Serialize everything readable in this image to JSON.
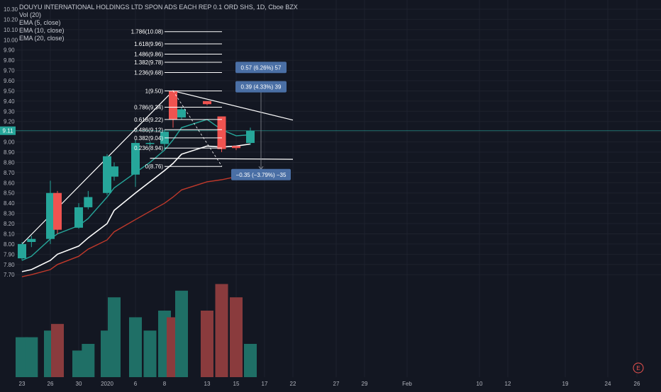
{
  "legend": {
    "title": "DOUYU INTERNATIONAL HOLDINGS LTD SPON ADS EACH REP 0.1 ORD SHS, 1D, Cboe BZX",
    "vol": "Vol (20)",
    "ema5": "EMA (5, close)",
    "ema10": "EMA (10, close)",
    "ema20": "EMA (20, close)"
  },
  "colors": {
    "background": "#131722",
    "grid": "#1e222d",
    "up": "#26a69a",
    "down": "#ef5350",
    "up_volume": "#1f6f66",
    "down_volume": "#8a3b3d",
    "ema20": "#c0392b",
    "price_line": "#26a69a"
  },
  "chart_data": {
    "type": "candlestick",
    "y_ticks": [
      "10.30",
      "10.20",
      "10.10",
      "10.00",
      "9.90",
      "9.80",
      "9.70",
      "9.60",
      "9.50",
      "9.40",
      "9.30",
      "9.20",
      "9.10",
      "9.00",
      "8.90",
      "8.80",
      "8.70",
      "8.60",
      "8.50",
      "8.40",
      "8.30",
      "8.20",
      "8.10",
      "8.00",
      "7.90",
      "7.80",
      "7.70"
    ],
    "x_ticks": [
      {
        "label": "23",
        "date": "2019-12-23"
      },
      {
        "label": "26",
        "date": "2019-12-26"
      },
      {
        "label": "30",
        "date": "2019-12-30"
      },
      {
        "label": "2020",
        "date": "2020-01-02"
      },
      {
        "label": "6",
        "date": "2020-01-06"
      },
      {
        "label": "8",
        "date": "2020-01-08"
      },
      {
        "label": "13",
        "date": "2020-01-13"
      },
      {
        "label": "15",
        "date": "2020-01-15"
      },
      {
        "label": "17",
        "date": "2020-01-17"
      },
      {
        "label": "22",
        "date": "2020-01-22"
      },
      {
        "label": "27",
        "date": "2020-01-27"
      },
      {
        "label": "29",
        "date": "2020-01-29"
      },
      {
        "label": "Feb",
        "date": "2020-02-03"
      },
      {
        "label": "10",
        "date": "2020-02-10"
      },
      {
        "label": "12",
        "date": "2020-02-12"
      },
      {
        "label": "19",
        "date": "2020-02-19"
      },
      {
        "label": "24",
        "date": "2020-02-24"
      },
      {
        "label": "26",
        "date": "2020-02-26"
      }
    ],
    "candles": [
      {
        "date": "2019-12-23",
        "o": 7.86,
        "h": 8.02,
        "l": 7.84,
        "c": 8.0
      },
      {
        "date": "2019-12-24",
        "o": 8.02,
        "h": 8.08,
        "l": 7.97,
        "c": 8.05
      },
      {
        "date": "2019-12-26",
        "o": 8.05,
        "h": 8.62,
        "l": 8.0,
        "c": 8.5
      },
      {
        "date": "2019-12-27",
        "o": 8.5,
        "h": 8.52,
        "l": 8.1,
        "c": 8.14
      },
      {
        "date": "2019-12-30",
        "o": 8.16,
        "h": 8.4,
        "l": 8.15,
        "c": 8.36
      },
      {
        "date": "2019-12-31",
        "o": 8.36,
        "h": 8.52,
        "l": 8.34,
        "c": 8.46
      },
      {
        "date": "2020-01-02",
        "o": 8.5,
        "h": 8.88,
        "l": 8.48,
        "c": 8.86
      },
      {
        "date": "2020-01-03",
        "o": 8.66,
        "h": 8.8,
        "l": 8.62,
        "c": 8.76
      },
      {
        "date": "2020-01-06",
        "o": 8.68,
        "h": 9.02,
        "l": 8.56,
        "c": 8.99
      },
      {
        "date": "2020-01-07",
        "o": 8.98,
        "h": 9.0,
        "l": 8.96,
        "c": 8.99
      },
      {
        "date": "2020-01-08",
        "o": 8.98,
        "h": 9.12,
        "l": 8.92,
        "c": 9.1
      },
      {
        "date": "2020-01-09",
        "o": 9.5,
        "h": 9.51,
        "l": 9.14,
        "c": 9.22
      },
      {
        "date": "2020-01-10",
        "o": 9.24,
        "h": 9.34,
        "l": 9.22,
        "c": 9.32
      },
      {
        "date": "2020-01-13",
        "o": 9.4,
        "h": 9.4,
        "l": 9.36,
        "c": 9.37
      },
      {
        "date": "2020-01-14",
        "o": 9.25,
        "h": 9.25,
        "l": 8.9,
        "c": 8.93
      },
      {
        "date": "2020-01-15",
        "o": 8.96,
        "h": 8.96,
        "l": 8.92,
        "c": 8.94
      },
      {
        "date": "2020-01-16",
        "o": 8.99,
        "h": 9.14,
        "l": 8.97,
        "c": 9.11
      }
    ],
    "volume_index": [
      6,
      6,
      7,
      8,
      4,
      5,
      7,
      12,
      9,
      7,
      10,
      9,
      13,
      10,
      14,
      12,
      5
    ],
    "ema5": [
      {
        "date": "2019-12-23",
        "v": 7.84
      },
      {
        "date": "2019-12-24",
        "v": 7.88
      },
      {
        "date": "2019-12-26",
        "v": 8.05
      },
      {
        "date": "2019-12-27",
        "v": 8.1
      },
      {
        "date": "2019-12-30",
        "v": 8.18
      },
      {
        "date": "2019-12-31",
        "v": 8.25
      },
      {
        "date": "2020-01-02",
        "v": 8.46
      },
      {
        "date": "2020-01-03",
        "v": 8.55
      },
      {
        "date": "2020-01-06",
        "v": 8.7
      },
      {
        "date": "2020-01-07",
        "v": 8.8
      },
      {
        "date": "2020-01-08",
        "v": 8.92
      },
      {
        "date": "2020-01-09",
        "v": 9.02
      },
      {
        "date": "2020-01-10",
        "v": 9.14
      },
      {
        "date": "2020-01-13",
        "v": 9.22
      },
      {
        "date": "2020-01-14",
        "v": 9.12
      },
      {
        "date": "2020-01-15",
        "v": 9.06
      },
      {
        "date": "2020-01-16",
        "v": 9.07
      }
    ],
    "ema10": [
      {
        "date": "2019-12-23",
        "v": 7.73
      },
      {
        "date": "2019-12-24",
        "v": 7.75
      },
      {
        "date": "2019-12-26",
        "v": 7.84
      },
      {
        "date": "2019-12-27",
        "v": 7.9
      },
      {
        "date": "2019-12-30",
        "v": 7.98
      },
      {
        "date": "2019-12-31",
        "v": 8.06
      },
      {
        "date": "2020-01-02",
        "v": 8.2
      },
      {
        "date": "2020-01-03",
        "v": 8.33
      },
      {
        "date": "2020-01-06",
        "v": 8.5
      },
      {
        "date": "2020-01-07",
        "v": 8.61
      },
      {
        "date": "2020-01-08",
        "v": 8.72
      },
      {
        "date": "2020-01-09",
        "v": 8.79
      },
      {
        "date": "2020-01-10",
        "v": 8.88
      },
      {
        "date": "2020-01-13",
        "v": 8.96
      },
      {
        "date": "2020-01-14",
        "v": 8.95
      },
      {
        "date": "2020-01-15",
        "v": 8.96
      },
      {
        "date": "2020-01-16",
        "v": 8.98
      }
    ],
    "ema20": [
      {
        "date": "2019-12-23",
        "v": 7.68
      },
      {
        "date": "2019-12-24",
        "v": 7.7
      },
      {
        "date": "2019-12-26",
        "v": 7.75
      },
      {
        "date": "2019-12-27",
        "v": 7.8
      },
      {
        "date": "2019-12-30",
        "v": 7.88
      },
      {
        "date": "2019-12-31",
        "v": 7.95
      },
      {
        "date": "2020-01-02",
        "v": 8.04
      },
      {
        "date": "2020-01-03",
        "v": 8.12
      },
      {
        "date": "2020-01-06",
        "v": 8.24
      },
      {
        "date": "2020-01-07",
        "v": 8.32
      },
      {
        "date": "2020-01-08",
        "v": 8.4
      },
      {
        "date": "2020-01-09",
        "v": 8.46
      },
      {
        "date": "2020-01-10",
        "v": 8.53
      },
      {
        "date": "2020-01-13",
        "v": 8.61
      },
      {
        "date": "2020-01-14",
        "v": 8.63
      },
      {
        "date": "2020-01-15",
        "v": 8.66
      },
      {
        "date": "2020-01-16",
        "v": 8.68
      }
    ],
    "last_price": "9.11",
    "fib_levels": [
      {
        "label": "1.786(10.08)",
        "v": 10.08
      },
      {
        "label": "1.618(9.96)",
        "v": 9.96
      },
      {
        "label": "1.486(9.86)",
        "v": 9.86
      },
      {
        "label": "1.382(9.78)",
        "v": 9.78
      },
      {
        "label": "1.236(9.68)",
        "v": 9.68
      },
      {
        "label": "1(9.50)",
        "v": 9.5
      },
      {
        "label": "0.786(9.34)",
        "v": 9.34
      },
      {
        "label": "0.618(9.22)",
        "v": 9.22
      },
      {
        "label": "0.486(9.12)",
        "v": 9.12
      },
      {
        "label": "0.382(9.04)",
        "v": 9.04
      },
      {
        "label": "0.236(8.94)",
        "v": 8.94
      },
      {
        "label": "0(8.76)",
        "v": 8.76
      }
    ],
    "measure_labels": {
      "up_1": "0.57 (6.26%) 57",
      "up_2": "0.39 (4.33%) 39",
      "down": "−0.35 (−3.79%) −35"
    },
    "support_level": 8.84,
    "e_badge": "E"
  }
}
